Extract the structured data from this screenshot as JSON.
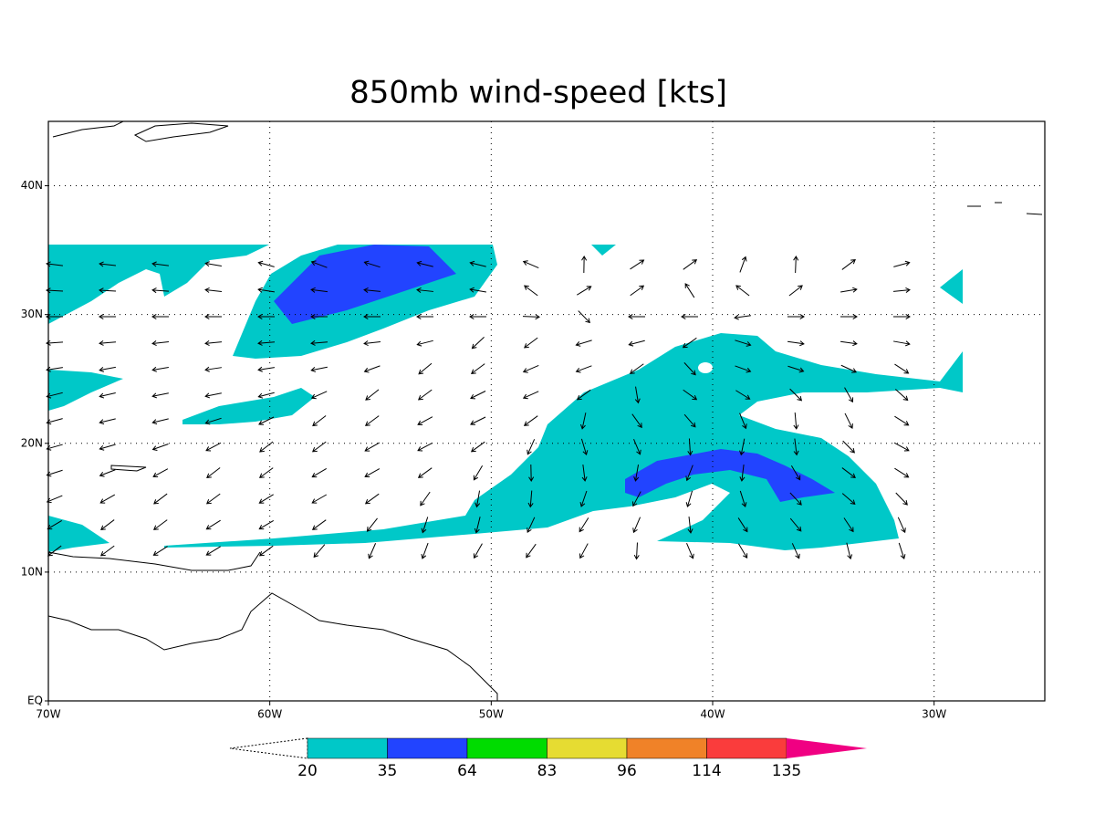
{
  "title": "850mb wind-speed [kts]",
  "map": {
    "lon_range": [
      -70,
      -25
    ],
    "lat_range": [
      0,
      45
    ],
    "lon_ticks": [
      {
        "value": -70,
        "label": "70W"
      },
      {
        "value": -60,
        "label": "60W"
      },
      {
        "value": -50,
        "label": "50W"
      },
      {
        "value": -40,
        "label": "40W"
      },
      {
        "value": -30,
        "label": "30W"
      }
    ],
    "lat_ticks": [
      {
        "value": 0,
        "label": "EQ"
      },
      {
        "value": 10,
        "label": "10N"
      },
      {
        "value": 20,
        "label": "20N"
      },
      {
        "value": 30,
        "label": "30N"
      },
      {
        "value": 40,
        "label": "40N"
      }
    ],
    "grid": true
  },
  "colorbar": {
    "levels": [
      20,
      35,
      64,
      83,
      96,
      114,
      135
    ],
    "colors": [
      "#ffffff",
      "#00c8c8",
      "#2244ff",
      "#00dc00",
      "#e6dc32",
      "#f08228",
      "#fa3c3c",
      "#f00082"
    ]
  }
}
